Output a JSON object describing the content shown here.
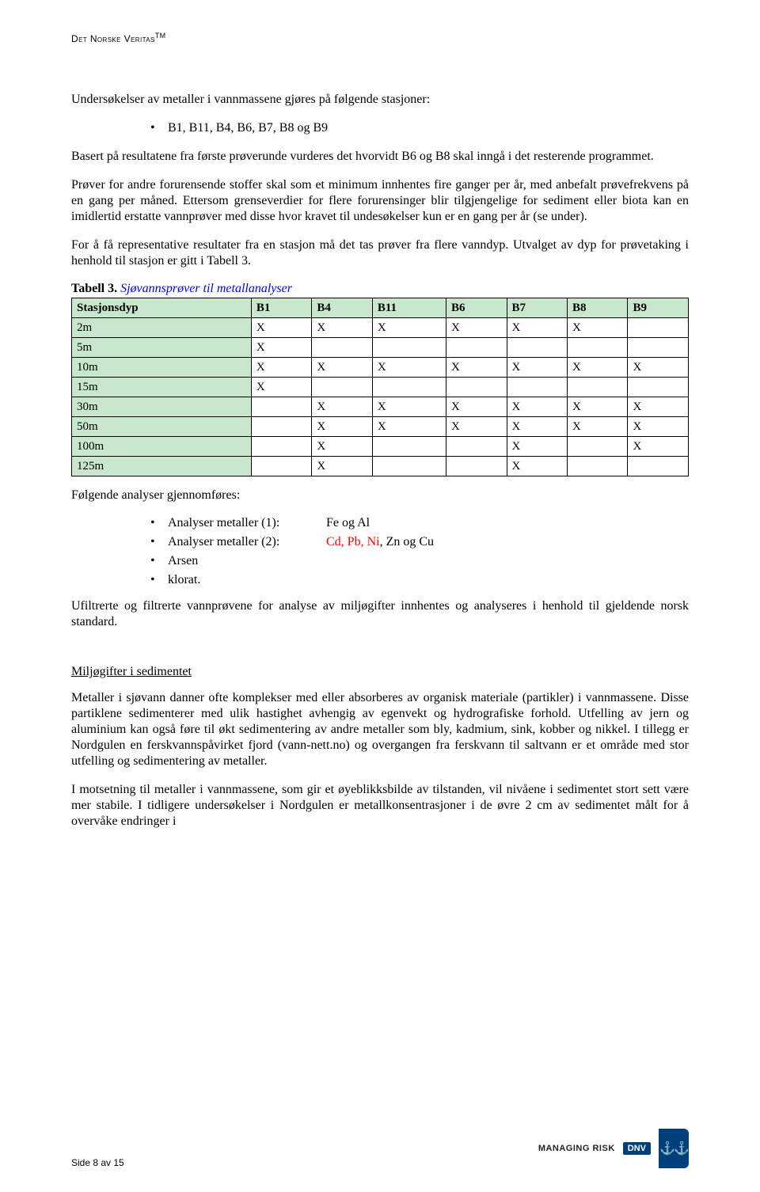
{
  "header": {
    "brand": "Det Norske Veritas",
    "tm": "TM"
  },
  "p1": "Undersøkelser av metaller i vannmassene gjøres på følgende stasjoner:",
  "bullet1": "B1, B11, B4, B6, B7, B8 og B9",
  "p2": "Basert på resultatene fra første prøverunde vurderes det hvorvidt B6 og B8 skal inngå i det resterende programmet.",
  "p3": "Prøver for andre forurensende stoffer skal som et minimum innhentes fire ganger per år, med anbefalt prøvefrekvens på en gang per måned. Ettersom grenseverdier for flere forurensinger blir tilgjengelige for sediment eller biota kan en imidlertid erstatte vannprøver med disse hvor kravet til undesøkelser kun er en gang per år (se under).",
  "p4": "For å få representative resultater fra en stasjon må det tas prøver fra flere vanndyp. Utvalget av dyp for prøvetaking i henhold til stasjon er gitt i Tabell 3.",
  "table": {
    "caption_bold": "Tabell 3.",
    "caption_rest": " Sjøvannsprøver til metallanalyser",
    "header_bg": "#c8e7cc",
    "rowhead_bg": "#c8e7cc",
    "columns": [
      "Stasjonsdyp",
      "B1",
      "B4",
      "B11",
      "B6",
      "B7",
      "B8",
      "B9"
    ],
    "rows": [
      [
        "2m",
        "X",
        "X",
        "X",
        "X",
        "X",
        "X",
        ""
      ],
      [
        "5m",
        "X",
        "",
        "",
        "",
        "",
        "",
        ""
      ],
      [
        "10m",
        "X",
        "X",
        "X",
        "X",
        "X",
        "X",
        "X"
      ],
      [
        "15m",
        "X",
        "",
        "",
        "",
        "",
        "",
        ""
      ],
      [
        "30m",
        "",
        "X",
        "X",
        "X",
        "X",
        "X",
        "X"
      ],
      [
        "50m",
        "",
        "X",
        "X",
        "X",
        "X",
        "X",
        "X"
      ],
      [
        "100m",
        "",
        "X",
        "",
        "",
        "X",
        "",
        "X"
      ],
      [
        "125m",
        "",
        "X",
        "",
        "",
        "X",
        "",
        ""
      ]
    ]
  },
  "p5": "Følgende analyser gjennomføres:",
  "analyze": {
    "items": [
      {
        "label": "Analyser metaller (1):",
        "value": "Fe og Al",
        "value_red": ""
      },
      {
        "label": "Analyser metaller (2):",
        "value": ", Zn og Cu",
        "value_red": "Cd, Pb, Ni"
      },
      {
        "label": "Arsen",
        "value": "",
        "value_red": ""
      },
      {
        "label": "klorat.",
        "value": "",
        "value_red": ""
      }
    ]
  },
  "p6": "Ufiltrerte og filtrerte vannprøvene for analyse av miljøgifter innhentes og analyseres i henhold til gjeldende norsk standard.",
  "subhead": "Miljøgifter i sedimentet",
  "p7": "Metaller i sjøvann danner ofte komplekser med eller absorberes av organisk materiale (partikler) i vannmassene. Disse partiklene sedimenterer med ulik hastighet avhengig av egenvekt og hydrografiske forhold. Utfelling av jern og aluminium kan også føre til økt sedimentering av andre metaller som bly, kadmium, sink, kobber og nikkel. I tillegg er Nordgulen en ferskvannspåvirket fjord (vann-nett.no) og overgangen fra ferskvann til saltvann er et område med stor utfelling og sedimentering av metaller.",
  "p8": "I motsetning til metaller i vannmassene, som gir et øyeblikksbilde av tilstanden, vil nivåene i sedimentet stort sett være mer stabile. I tidligere undersøkelser i Nordgulen er metallkonsentrasjoner i de øvre 2 cm av sedimentet målt for å overvåke endringer i",
  "footer": {
    "page": "Side 8 av 15",
    "mr": "MANAGING RISK",
    "badge": "DNV"
  }
}
